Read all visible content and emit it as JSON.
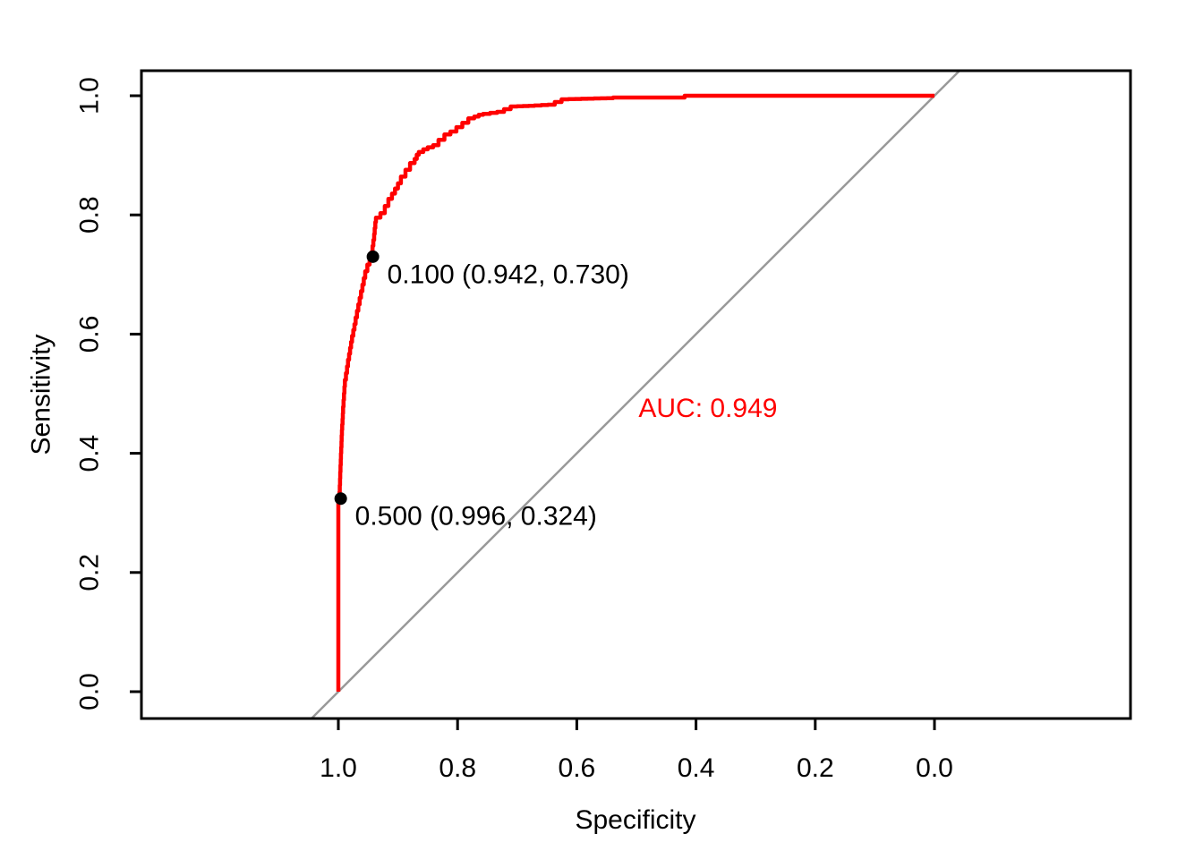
{
  "chart_data": {
    "type": "line",
    "title": "",
    "xlabel": "Specificity",
    "ylabel": "Sensitivity",
    "xlim": [
      1.0,
      0.0
    ],
    "ylim": [
      0.0,
      1.0
    ],
    "x_axis_reversed": true,
    "grid": false,
    "legend": "none",
    "x_tick_labels": [
      "1.0",
      "0.8",
      "0.6",
      "0.4",
      "0.2",
      "0.0"
    ],
    "x_tick_values": [
      1.0,
      0.8,
      0.6,
      0.4,
      0.2,
      0.0
    ],
    "y_tick_labels": [
      "0.0",
      "0.2",
      "0.4",
      "0.6",
      "0.8",
      "1.0"
    ],
    "y_tick_values": [
      0.0,
      0.2,
      0.4,
      0.6,
      0.8,
      1.0
    ],
    "colors": {
      "roc_curve": "#FF0000",
      "chance_line": "#999999",
      "threshold_point": "#000000",
      "axis": "#000000",
      "auc_text": "#FF0000"
    },
    "series": [
      {
        "name": "ROC curve",
        "color": "#FF0000",
        "points": [
          [
            1.0,
            0.0
          ],
          [
            1.0,
            0.32
          ],
          [
            0.998,
            0.324
          ],
          [
            0.996,
            0.38
          ],
          [
            0.994,
            0.43
          ],
          [
            0.992,
            0.467
          ],
          [
            0.989,
            0.512
          ],
          [
            0.982,
            0.557
          ],
          [
            0.977,
            0.587
          ],
          [
            0.971,
            0.617
          ],
          [
            0.962,
            0.661
          ],
          [
            0.955,
            0.694
          ],
          [
            0.944,
            0.728
          ],
          [
            0.94,
            0.758
          ],
          [
            0.937,
            0.788
          ],
          [
            0.922,
            0.803
          ],
          [
            0.91,
            0.827
          ],
          [
            0.895,
            0.853
          ],
          [
            0.872,
            0.887
          ],
          [
            0.865,
            0.901
          ],
          [
            0.85,
            0.91
          ],
          [
            0.832,
            0.917
          ],
          [
            0.812,
            0.935
          ],
          [
            0.802,
            0.94
          ],
          [
            0.772,
            0.962
          ],
          [
            0.757,
            0.968
          ],
          [
            0.722,
            0.973
          ],
          [
            0.7,
            0.982
          ],
          [
            0.671,
            0.983
          ],
          [
            0.637,
            0.985
          ],
          [
            0.614,
            0.994
          ],
          [
            0.539,
            0.996
          ],
          [
            0.536,
            0.997
          ],
          [
            0.419,
            0.997
          ],
          [
            0.416,
            1.0
          ],
          [
            0.0,
            1.0
          ]
        ]
      }
    ],
    "reference_line": {
      "name": "chance diagonal",
      "color": "#999999",
      "from": [
        1.0,
        0.0
      ],
      "to": [
        0.0,
        1.0
      ]
    },
    "threshold_points": [
      {
        "threshold": "0.500",
        "specificity": 0.996,
        "sensitivity": 0.324,
        "label": "0.500 (0.996, 0.324)",
        "color": "#000000"
      },
      {
        "threshold": "0.100",
        "specificity": 0.942,
        "sensitivity": 0.73,
        "label": "0.100 (0.942, 0.730)",
        "color": "#000000"
      }
    ],
    "auc_annotation": {
      "text": "AUC: 0.949",
      "value": 0.949,
      "color": "#FF0000",
      "specificity": 0.38,
      "sensitivity": 0.477
    }
  }
}
